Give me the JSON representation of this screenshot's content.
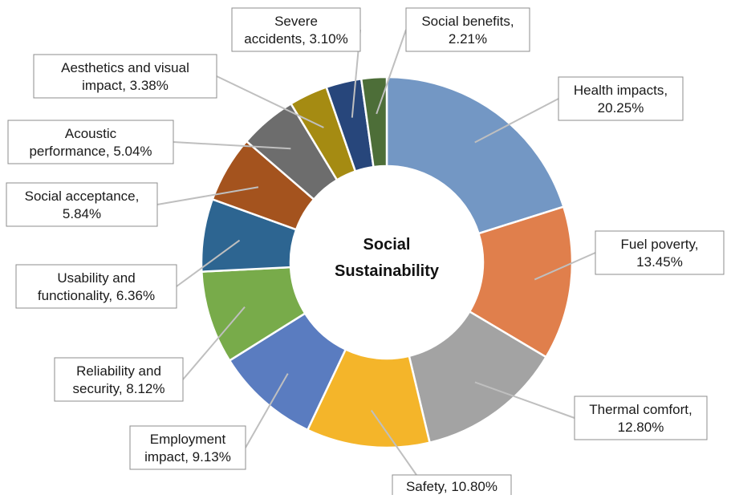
{
  "chart_data": {
    "type": "pie",
    "variant": "doughnut",
    "center_label": [
      "Social",
      "Sustainability"
    ],
    "slices": [
      {
        "name": "Health impacts",
        "value": 20.25,
        "label_lines": [
          "Health impacts,",
          "20.25%"
        ],
        "color": "#7397c4"
      },
      {
        "name": "Fuel poverty",
        "value": 13.45,
        "label_lines": [
          "Fuel poverty,",
          "13.45%"
        ],
        "color": "#e07f4c"
      },
      {
        "name": "Thermal comfort",
        "value": 12.8,
        "label_lines": [
          "Thermal comfort,",
          "12.80%"
        ],
        "color": "#a3a3a3"
      },
      {
        "name": "Safety",
        "value": 10.8,
        "label_lines": [
          "Safety, 10.80%"
        ],
        "color": "#f4b52a"
      },
      {
        "name": "Employment impact",
        "value": 9.13,
        "label_lines": [
          "Employment",
          "impact, 9.13%"
        ],
        "color": "#5a7cc0"
      },
      {
        "name": "Reliability and security",
        "value": 8.12,
        "label_lines": [
          "Reliability and",
          "security, 8.12%"
        ],
        "color": "#78ab4a"
      },
      {
        "name": "Usability and functionality",
        "value": 6.36,
        "label_lines": [
          "Usability and",
          "functionality, 6.36%"
        ],
        "color": "#2d6591"
      },
      {
        "name": "Social acceptance",
        "value": 5.84,
        "label_lines": [
          "Social acceptance,",
          "5.84%"
        ],
        "color": "#a4531e"
      },
      {
        "name": "Acoustic performance",
        "value": 5.04,
        "label_lines": [
          "Acoustic",
          "performance, 5.04%"
        ],
        "color": "#6d6d6d"
      },
      {
        "name": "Aesthetics and visual impact",
        "value": 3.38,
        "label_lines": [
          "Aesthetics and visual",
          "impact, 3.38%"
        ],
        "color": "#a58b12"
      },
      {
        "name": "Severe accidents",
        "value": 3.1,
        "label_lines": [
          "Severe",
          "accidents, 3.10%"
        ],
        "color": "#27467b"
      },
      {
        "name": "Social benefits",
        "value": 2.21,
        "label_lines": [
          "Social benefits,",
          "2.21%"
        ],
        "color": "#4d6e38"
      }
    ]
  }
}
